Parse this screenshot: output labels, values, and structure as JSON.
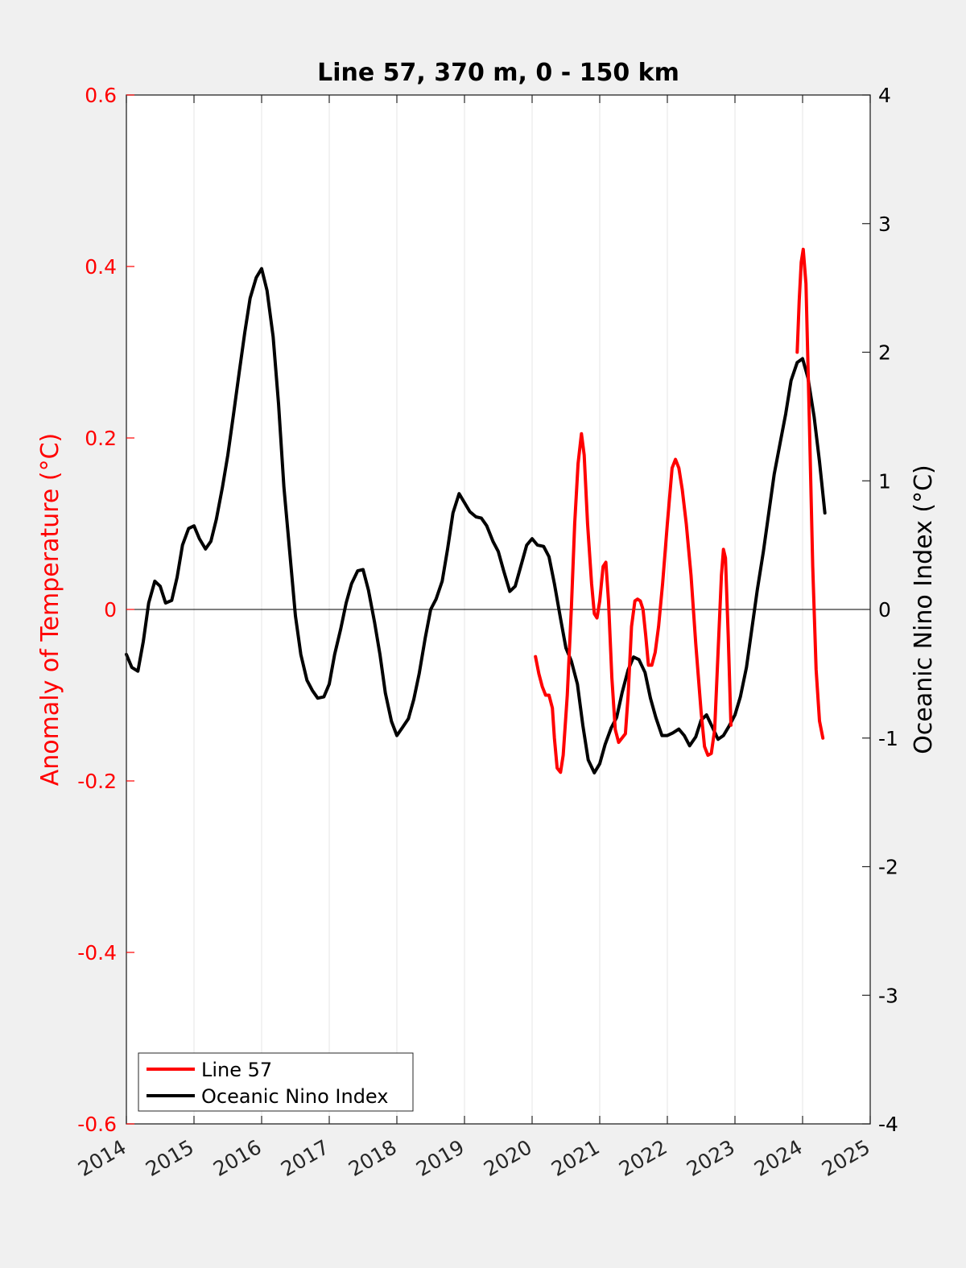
{
  "chart_data": {
    "type": "line",
    "title": "Line 57, 370 m, 0 - 150 km",
    "xlabel": "",
    "ylabel_left": "Anomaly of Temperature (°C)",
    "ylabel_right": "Oceanic Nino Index (°C)",
    "xlim": [
      2014,
      2025
    ],
    "ylim_left": [
      -0.6,
      0.6
    ],
    "ylim_right": [
      -4,
      4
    ],
    "x_ticks": [
      "2014",
      "2015",
      "2016",
      "2017",
      "2018",
      "2019",
      "2020",
      "2021",
      "2022",
      "2023",
      "2024",
      "2025"
    ],
    "y_ticks_left": [
      "0.6",
      "0.4",
      "0.2",
      "0",
      "-0.2",
      "-0.4",
      "-0.6"
    ],
    "y_ticks_right": [
      "4",
      "3",
      "2",
      "1",
      "0",
      "-1",
      "-2",
      "-3",
      "-4"
    ],
    "grid": "vertical",
    "legend_position": "bottom-left",
    "series": [
      {
        "name": "Line 57",
        "axis": "left",
        "color": "#ff0000",
        "points": [
          [
            2020.05,
            -0.055
          ],
          [
            2020.1,
            -0.075
          ],
          [
            2020.15,
            -0.09
          ],
          [
            2020.2,
            -0.1
          ],
          [
            2020.25,
            -0.1
          ],
          [
            2020.3,
            -0.115
          ],
          [
            2020.33,
            -0.15
          ],
          [
            2020.37,
            -0.185
          ],
          [
            2020.42,
            -0.19
          ],
          [
            2020.46,
            -0.17
          ],
          [
            2020.52,
            -0.1
          ],
          [
            2020.58,
            0.0
          ],
          [
            2020.63,
            0.1
          ],
          [
            2020.68,
            0.17
          ],
          [
            2020.73,
            0.205
          ],
          [
            2020.77,
            0.18
          ],
          [
            2020.82,
            0.1
          ],
          [
            2020.88,
            0.03
          ],
          [
            2020.92,
            -0.005
          ],
          [
            2020.96,
            -0.01
          ],
          [
            2021.0,
            0.01
          ],
          [
            2021.05,
            0.05
          ],
          [
            2021.09,
            0.055
          ],
          [
            2021.13,
            0.01
          ],
          [
            2021.18,
            -0.08
          ],
          [
            2021.23,
            -0.14
          ],
          [
            2021.28,
            -0.155
          ],
          [
            2021.33,
            -0.15
          ],
          [
            2021.38,
            -0.145
          ],
          [
            2021.42,
            -0.1
          ],
          [
            2021.47,
            -0.02
          ],
          [
            2021.52,
            0.01
          ],
          [
            2021.56,
            0.012
          ],
          [
            2021.6,
            0.01
          ],
          [
            2021.64,
            0.0
          ],
          [
            2021.68,
            -0.03
          ],
          [
            2021.72,
            -0.065
          ],
          [
            2021.77,
            -0.065
          ],
          [
            2021.82,
            -0.05
          ],
          [
            2021.87,
            -0.02
          ],
          [
            2021.93,
            0.03
          ],
          [
            2022.0,
            0.1
          ],
          [
            2022.07,
            0.165
          ],
          [
            2022.12,
            0.175
          ],
          [
            2022.17,
            0.165
          ],
          [
            2022.22,
            0.14
          ],
          [
            2022.28,
            0.1
          ],
          [
            2022.35,
            0.04
          ],
          [
            2022.42,
            -0.04
          ],
          [
            2022.5,
            -0.12
          ],
          [
            2022.55,
            -0.16
          ],
          [
            2022.6,
            -0.17
          ],
          [
            2022.65,
            -0.168
          ],
          [
            2022.7,
            -0.14
          ],
          [
            2022.75,
            -0.05
          ],
          [
            2022.8,
            0.04
          ],
          [
            2022.83,
            0.07
          ],
          [
            2022.86,
            0.06
          ],
          [
            2022.9,
            -0.03
          ],
          [
            2022.94,
            -0.135
          ],
          [
            2023.92,
            0.3
          ],
          [
            2023.95,
            0.36
          ],
          [
            2023.98,
            0.405
          ],
          [
            2024.01,
            0.42
          ],
          [
            2024.05,
            0.38
          ],
          [
            2024.1,
            0.22
          ],
          [
            2024.15,
            0.05
          ],
          [
            2024.2,
            -0.07
          ],
          [
            2024.25,
            -0.13
          ],
          [
            2024.3,
            -0.15
          ]
        ]
      },
      {
        "name": "Oceanic Nino Index",
        "axis": "right",
        "color": "#000000",
        "points": [
          [
            2014.0,
            -0.35
          ],
          [
            2014.08,
            -0.45
          ],
          [
            2014.17,
            -0.48
          ],
          [
            2014.25,
            -0.25
          ],
          [
            2014.33,
            0.05
          ],
          [
            2014.42,
            0.22
          ],
          [
            2014.5,
            0.18
          ],
          [
            2014.58,
            0.05
          ],
          [
            2014.67,
            0.07
          ],
          [
            2014.75,
            0.25
          ],
          [
            2014.83,
            0.5
          ],
          [
            2014.92,
            0.63
          ],
          [
            2015.0,
            0.65
          ],
          [
            2015.08,
            0.55
          ],
          [
            2015.17,
            0.47
          ],
          [
            2015.25,
            0.53
          ],
          [
            2015.33,
            0.7
          ],
          [
            2015.42,
            0.95
          ],
          [
            2015.5,
            1.2
          ],
          [
            2015.58,
            1.5
          ],
          [
            2015.67,
            1.85
          ],
          [
            2015.75,
            2.15
          ],
          [
            2015.83,
            2.42
          ],
          [
            2015.92,
            2.58
          ],
          [
            2016.0,
            2.65
          ],
          [
            2016.08,
            2.48
          ],
          [
            2016.17,
            2.12
          ],
          [
            2016.25,
            1.6
          ],
          [
            2016.33,
            0.95
          ],
          [
            2016.42,
            0.42
          ],
          [
            2016.5,
            -0.05
          ],
          [
            2016.58,
            -0.35
          ],
          [
            2016.67,
            -0.55
          ],
          [
            2016.75,
            -0.63
          ],
          [
            2016.83,
            -0.69
          ],
          [
            2016.92,
            -0.68
          ],
          [
            2017.0,
            -0.58
          ],
          [
            2017.08,
            -0.35
          ],
          [
            2017.17,
            -0.15
          ],
          [
            2017.25,
            0.05
          ],
          [
            2017.33,
            0.2
          ],
          [
            2017.42,
            0.3
          ],
          [
            2017.5,
            0.31
          ],
          [
            2017.58,
            0.15
          ],
          [
            2017.67,
            -0.1
          ],
          [
            2017.75,
            -0.35
          ],
          [
            2017.83,
            -0.65
          ],
          [
            2017.92,
            -0.87
          ],
          [
            2018.0,
            -0.98
          ],
          [
            2018.08,
            -0.92
          ],
          [
            2018.17,
            -0.85
          ],
          [
            2018.25,
            -0.7
          ],
          [
            2018.33,
            -0.5
          ],
          [
            2018.42,
            -0.22
          ],
          [
            2018.5,
            0.0
          ],
          [
            2018.58,
            0.08
          ],
          [
            2018.67,
            0.22
          ],
          [
            2018.75,
            0.47
          ],
          [
            2018.83,
            0.75
          ],
          [
            2018.92,
            0.9
          ],
          [
            2019.0,
            0.83
          ],
          [
            2019.08,
            0.76
          ],
          [
            2019.17,
            0.72
          ],
          [
            2019.25,
            0.71
          ],
          [
            2019.33,
            0.65
          ],
          [
            2019.42,
            0.53
          ],
          [
            2019.5,
            0.45
          ],
          [
            2019.58,
            0.3
          ],
          [
            2019.67,
            0.14
          ],
          [
            2019.75,
            0.18
          ],
          [
            2019.83,
            0.33
          ],
          [
            2019.92,
            0.5
          ],
          [
            2020.0,
            0.55
          ],
          [
            2020.08,
            0.5
          ],
          [
            2020.17,
            0.49
          ],
          [
            2020.25,
            0.41
          ],
          [
            2020.33,
            0.2
          ],
          [
            2020.42,
            -0.07
          ],
          [
            2020.5,
            -0.3
          ],
          [
            2020.58,
            -0.4
          ],
          [
            2020.67,
            -0.58
          ],
          [
            2020.75,
            -0.9
          ],
          [
            2020.83,
            -1.17
          ],
          [
            2020.92,
            -1.27
          ],
          [
            2021.0,
            -1.2
          ],
          [
            2021.08,
            -1.05
          ],
          [
            2021.17,
            -0.92
          ],
          [
            2021.25,
            -0.84
          ],
          [
            2021.33,
            -0.65
          ],
          [
            2021.42,
            -0.47
          ],
          [
            2021.5,
            -0.37
          ],
          [
            2021.58,
            -0.39
          ],
          [
            2021.67,
            -0.49
          ],
          [
            2021.75,
            -0.69
          ],
          [
            2021.83,
            -0.84
          ],
          [
            2021.92,
            -0.98
          ],
          [
            2022.0,
            -0.98
          ],
          [
            2022.08,
            -0.96
          ],
          [
            2022.17,
            -0.93
          ],
          [
            2022.25,
            -0.98
          ],
          [
            2022.33,
            -1.06
          ],
          [
            2022.42,
            -0.99
          ],
          [
            2022.5,
            -0.86
          ],
          [
            2022.58,
            -0.82
          ],
          [
            2022.67,
            -0.92
          ],
          [
            2022.75,
            -1.01
          ],
          [
            2022.83,
            -0.98
          ],
          [
            2022.92,
            -0.9
          ],
          [
            2023.0,
            -0.82
          ],
          [
            2023.08,
            -0.68
          ],
          [
            2023.17,
            -0.45
          ],
          [
            2023.25,
            -0.15
          ],
          [
            2023.33,
            0.15
          ],
          [
            2023.42,
            0.45
          ],
          [
            2023.5,
            0.75
          ],
          [
            2023.58,
            1.05
          ],
          [
            2023.67,
            1.3
          ],
          [
            2023.75,
            1.52
          ],
          [
            2023.83,
            1.78
          ],
          [
            2023.92,
            1.92
          ],
          [
            2024.0,
            1.95
          ],
          [
            2024.08,
            1.8
          ],
          [
            2024.17,
            1.5
          ],
          [
            2024.25,
            1.15
          ],
          [
            2024.33,
            0.75
          ]
        ]
      }
    ],
    "reference_line": {
      "axis": "left",
      "value": 0
    }
  }
}
